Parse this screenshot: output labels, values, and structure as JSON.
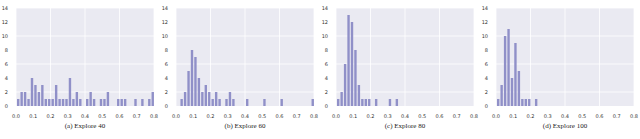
{
  "chart_data": [
    {
      "type": "histogram",
      "title": "(a) Explore 40",
      "color": "#9090c8",
      "grid": true,
      "bins": [
        0,
        0.02,
        0.04,
        0.06,
        0.08,
        0.1,
        0.12,
        0.14,
        0.16,
        0.18,
        0.2,
        0.22,
        0.24,
        0.26,
        0.28,
        0.3,
        0.32,
        0.34,
        0.36,
        0.38,
        0.4,
        0.42,
        0.44,
        0.46,
        0.48,
        0.5,
        0.52,
        0.54,
        0.56,
        0.58,
        0.6,
        0.62,
        0.64,
        0.66,
        0.68,
        0.7,
        0.72,
        0.74,
        0.76,
        0.78,
        0.8
      ],
      "values": [
        1,
        2,
        2,
        1,
        4,
        3,
        2,
        3,
        1,
        1,
        1,
        3,
        1,
        1,
        1,
        4,
        1,
        2,
        1,
        0,
        1,
        2,
        1,
        0,
        1,
        1,
        2,
        0,
        0,
        1,
        1,
        1,
        0,
        0,
        1,
        0,
        1,
        0,
        1,
        2
      ],
      "xlim": [
        0,
        0.8
      ],
      "xticks": [
        {
          "value": 0,
          "label": "0.0"
        },
        0.1,
        0.2,
        0.3,
        0.4,
        0.5,
        0.6,
        0.7,
        0.8
      ],
      "ylim": [
        0,
        14
      ],
      "yticks": [
        0,
        2,
        4,
        6,
        8,
        10,
        12,
        14
      ]
    },
    {
      "type": "histogram",
      "title": "(b) Explore 60",
      "color": "#9090c8",
      "grid": true,
      "bins": [
        0,
        0.02,
        0.04,
        0.06,
        0.08,
        0.1,
        0.12,
        0.14,
        0.16,
        0.18,
        0.2,
        0.22,
        0.24,
        0.26,
        0.28,
        0.3,
        0.32,
        0.34,
        0.36,
        0.38,
        0.4,
        0.42,
        0.44,
        0.46,
        0.48,
        0.5,
        0.52,
        0.54,
        0.56,
        0.58,
        0.6,
        0.62,
        0.64,
        0.66,
        0.68,
        0.7,
        0.72,
        0.74,
        0.76,
        0.78,
        0.8
      ],
      "values": [
        0,
        1,
        2,
        5,
        8,
        7,
        4,
        2,
        3,
        2,
        1,
        2,
        1,
        0,
        1,
        2,
        1,
        0,
        0,
        0,
        1,
        0,
        0,
        0,
        0,
        1,
        0,
        0,
        0,
        0,
        1,
        0,
        0,
        0,
        0,
        0,
        0,
        0,
        0,
        1
      ],
      "xlim": [
        0,
        0.8
      ],
      "xticks": [
        {
          "value": 0,
          "label": "0.0"
        },
        0.1,
        0.2,
        0.3,
        0.4,
        0.5,
        0.6,
        0.7,
        0.8
      ],
      "ylim": [
        0,
        14
      ],
      "yticks": [
        0,
        2,
        4,
        6,
        8,
        10,
        12,
        14
      ]
    },
    {
      "type": "histogram",
      "title": "(c) Explore 80",
      "color": "#9090c8",
      "grid": true,
      "bins": [
        0,
        0.02,
        0.04,
        0.06,
        0.08,
        0.1,
        0.12,
        0.14,
        0.16,
        0.18,
        0.2,
        0.22,
        0.24,
        0.26,
        0.28,
        0.3,
        0.32,
        0.34,
        0.36,
        0.38,
        0.4,
        0.42,
        0.44,
        0.46,
        0.48,
        0.5,
        0.52,
        0.54,
        0.56,
        0.58,
        0.6,
        0.62,
        0.64,
        0.66,
        0.68,
        0.7,
        0.72,
        0.74,
        0.76,
        0.78,
        0.8
      ],
      "values": [
        1,
        2,
        6,
        13,
        12,
        8,
        3,
        1,
        1,
        1,
        0,
        1,
        0,
        0,
        0,
        1,
        0,
        1,
        0,
        0,
        0,
        0,
        0,
        0,
        0,
        0,
        0,
        0,
        0,
        0,
        0,
        0,
        0,
        0,
        0,
        0,
        0,
        0,
        0,
        0
      ],
      "xlim": [
        0,
        0.8
      ],
      "xticks": [
        {
          "value": 0,
          "label": "0.0"
        },
        0.1,
        0.2,
        0.3,
        0.4,
        0.5,
        0.6,
        0.7,
        0.8
      ],
      "ylim": [
        0,
        14
      ],
      "yticks": [
        0,
        2,
        4,
        6,
        8,
        10,
        12,
        14
      ]
    },
    {
      "type": "histogram",
      "title": "(d) Explore 100",
      "color": "#9090c8",
      "grid": true,
      "bins": [
        0,
        0.02,
        0.04,
        0.06,
        0.08,
        0.1,
        0.12,
        0.14,
        0.16,
        0.18,
        0.2,
        0.22,
        0.24,
        0.26,
        0.28,
        0.3,
        0.32,
        0.34,
        0.36,
        0.38,
        0.4,
        0.42,
        0.44,
        0.46,
        0.48,
        0.5,
        0.52,
        0.54,
        0.56,
        0.58,
        0.6,
        0.62,
        0.64,
        0.66,
        0.68,
        0.7,
        0.72,
        0.74,
        0.76,
        0.78,
        0.8
      ],
      "values": [
        1,
        3,
        10,
        11,
        4,
        9,
        5,
        1,
        1,
        1,
        0,
        1,
        0,
        0,
        0,
        0,
        0,
        0,
        0,
        0,
        0,
        0,
        0,
        0,
        0,
        0,
        0,
        0,
        0,
        0,
        0,
        0,
        0,
        0,
        0,
        0,
        0,
        0,
        0,
        0
      ],
      "xlim": [
        0,
        0.8
      ],
      "xticks": [
        {
          "value": 0,
          "label": "0.0"
        },
        0.1,
        0.2,
        0.3,
        0.4,
        0.5,
        0.6,
        0.7,
        0.8
      ],
      "ylim": [
        0,
        14
      ],
      "yticks": [
        0,
        2,
        4,
        6,
        8,
        10,
        12,
        14
      ]
    }
  ]
}
